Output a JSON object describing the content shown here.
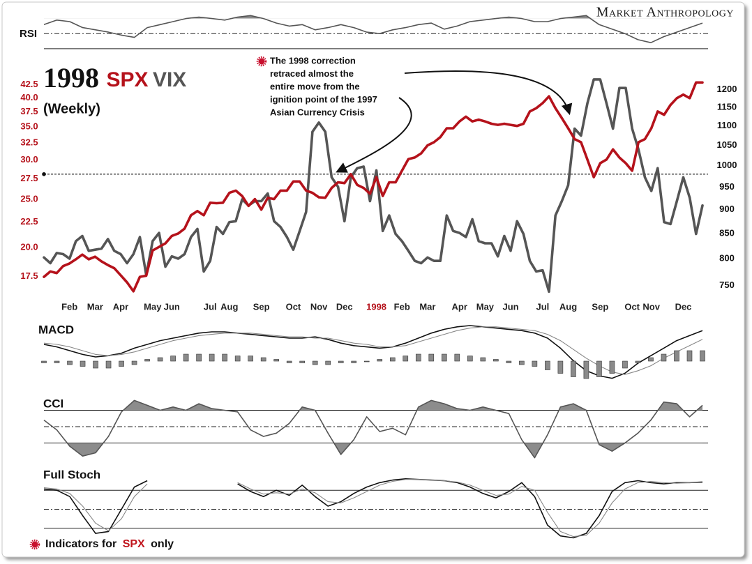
{
  "brand": "Market Anthropology",
  "footnote": [
    "Indicators for",
    "SPX",
    "only"
  ],
  "chart_data": [
    {
      "type": "line",
      "title": "1998",
      "subtitle": "(Weekly)",
      "log": true,
      "annotation": [
        "The 1998 correction",
        "retraced almost the",
        "entire move from the",
        "ignition point of the 1997",
        "Asian Currency Crisis"
      ],
      "categories": [
        null,
        null,
        null,
        null,
        "Feb",
        null,
        null,
        null,
        "Mar",
        null,
        null,
        null,
        "Apr",
        null,
        null,
        null,
        null,
        "May",
        null,
        null,
        "Jun",
        null,
        null,
        null,
        null,
        null,
        "Jul",
        null,
        null,
        "Aug",
        null,
        null,
        null,
        null,
        "Sep",
        null,
        null,
        null,
        null,
        "Oct",
        null,
        null,
        null,
        "Nov",
        null,
        null,
        null,
        "Dec",
        null,
        null,
        null,
        null,
        "1998",
        null,
        null,
        null,
        "Feb",
        null,
        null,
        null,
        "Mar",
        null,
        null,
        null,
        null,
        "Apr",
        null,
        null,
        null,
        "May",
        null,
        null,
        null,
        "Jun",
        null,
        null,
        null,
        null,
        "Jul",
        null,
        null,
        null,
        "Aug",
        null,
        null,
        null,
        null,
        "Sep",
        null,
        null,
        null,
        null,
        "Oct",
        null,
        null,
        "Nov",
        null,
        null,
        null,
        null,
        "Dec",
        null,
        null,
        null
      ],
      "year_label_color": "#b5121b",
      "ytick_color": "#b5121b",
      "ylim": [
        15.7,
        45.6
      ],
      "yticks": [
        17.5,
        {
          "value": 20,
          "label": "20.0"
        },
        22.5,
        {
          "value": 25,
          "label": "25.0"
        },
        27.5,
        {
          "value": 30,
          "label": "30.0"
        },
        32.5,
        {
          "value": 35,
          "label": "35.0"
        },
        37.5,
        {
          "value": 40,
          "label": "40.0"
        },
        42.5
      ],
      "y2lim": [
        725,
        1259
      ],
      "y2ticks": [
        750,
        800,
        850,
        900,
        950,
        1000,
        1050,
        1100,
        1150,
        1200
      ],
      "reference_line": {
        "axis": "y2",
        "value": 980
      },
      "series": [
        {
          "name": "VIX",
          "color": "#555555",
          "axis": "y",
          "values": [
            19.1,
            18.6,
            19.5,
            19.4,
            19.0,
            20.6,
            21.1,
            19.7,
            19.8,
            19.9,
            20.8,
            19.7,
            19.4,
            18.6,
            19.4,
            21.0,
            17.6,
            20.6,
            21.4,
            18.3,
            19.2,
            19.0,
            19.4,
            21.0,
            21.8,
            17.9,
            18.8,
            22.0,
            21.3,
            22.5,
            22.6,
            25.0,
            24.3,
            24.8,
            24.8,
            25.7,
            22.6,
            22.0,
            21.0,
            19.8,
            21.6,
            23.6,
            34.2,
            35.7,
            34.2,
            27.7,
            26.5,
            22.6,
            27.7,
            28.9,
            29.1,
            24.8,
            28.6,
            21.6,
            23.2,
            21.3,
            20.6,
            19.7,
            18.8,
            18.6,
            19.1,
            18.8,
            18.8,
            23.2,
            21.6,
            21.4,
            21.0,
            22.8,
            20.6,
            20.4,
            20.4,
            19.2,
            21.1,
            19.7,
            22.6,
            21.3,
            18.8,
            17.9,
            18.0,
            16.3,
            23.2,
            24.8,
            26.7,
            34.7,
            33.6,
            39.0,
            43.6,
            43.6,
            39.0,
            34.7,
            41.9,
            41.9,
            34.7,
            31.5,
            27.7,
            26.0,
            28.9,
            22.5,
            22.3,
            24.8,
            27.7,
            25.2,
            21.3,
            24.3
          ]
        },
        {
          "name": "SPX",
          "color": "#b5121b",
          "axis": "y2",
          "values": [
            766,
            776,
            773,
            786,
            791,
            799,
            808,
            799,
            804,
            795,
            788,
            782,
            769,
            756,
            740,
            766,
            768,
            816,
            823,
            830,
            845,
            850,
            860,
            888,
            897,
            888,
            915,
            914,
            915,
            937,
            942,
            930,
            908,
            923,
            900,
            926,
            923,
            942,
            942,
            963,
            963,
            942,
            937,
            927,
            926,
            948,
            961,
            959,
            980,
            955,
            948,
            935,
            973,
            930,
            961,
            961,
            988,
            1016,
            1020,
            1030,
            1050,
            1058,
            1071,
            1094,
            1094,
            1112,
            1125,
            1112,
            1117,
            1112,
            1106,
            1103,
            1106,
            1103,
            1100,
            1106,
            1139,
            1148,
            1162,
            1181,
            1148,
            1121,
            1094,
            1066,
            1058,
            1015,
            973,
            1006,
            1015,
            1040,
            1020,
            1006,
            988,
            1058,
            1066,
            1094,
            1139,
            1130,
            1157,
            1176,
            1186,
            1176,
            1221,
            1221
          ]
        }
      ]
    },
    {
      "type": "line",
      "label": "RSI",
      "ylim": [
        28,
        78
      ],
      "levels": [
        {
          "value": 50,
          "style": "dashed"
        },
        {
          "value": 30,
          "style": "solid"
        }
      ],
      "fill_above": 70,
      "series": [
        {
          "color": "#555555",
          "values": [
            62,
            68,
            66,
            58,
            55,
            52,
            48,
            45,
            58,
            62,
            66,
            70,
            72,
            70,
            68,
            72,
            74,
            70,
            64,
            60,
            62,
            55,
            58,
            62,
            58,
            52,
            50,
            55,
            58,
            62,
            64,
            56,
            60,
            66,
            68,
            70,
            72,
            70,
            66,
            66,
            70,
            72,
            74,
            62,
            56,
            50,
            42,
            38,
            46,
            52,
            58,
            64
          ]
        }
      ]
    },
    {
      "type": "line",
      "label": "MACD",
      "ylim": [
        -25,
        25
      ],
      "y2lim": [
        -12,
        24
      ],
      "series": [
        {
          "color": "#111111",
          "values": [
            5,
            3,
            0,
            -3,
            -5,
            -4,
            -2,
            2,
            5,
            8,
            10,
            12,
            14,
            15,
            15,
            14,
            13,
            12,
            11,
            10,
            10,
            11,
            9,
            6,
            4,
            3,
            2,
            3,
            6,
            10,
            14,
            17,
            19,
            20,
            19,
            18,
            17,
            16,
            14,
            10,
            2,
            -8,
            -16,
            -20,
            -22,
            -18,
            -10,
            -4,
            2,
            8,
            12,
            16
          ]
        },
        {
          "color": "#888888",
          "values": [
            6,
            5,
            3,
            0,
            -3,
            -4,
            -3,
            -1,
            2,
            5,
            8,
            10,
            12,
            13,
            14,
            14,
            14,
            13,
            12,
            11,
            11,
            10,
            10,
            8,
            6,
            5,
            3,
            3,
            4,
            7,
            10,
            13,
            16,
            18,
            19,
            19,
            18,
            17,
            16,
            13,
            8,
            1,
            -6,
            -12,
            -17,
            -19,
            -16,
            -12,
            -6,
            -1,
            4,
            9
          ]
        },
        {
          "type": "bar",
          "axis": "y2",
          "color": "#8a8a8a",
          "values": [
            -1,
            -1,
            -2,
            -3,
            -4,
            -4,
            -3,
            -2,
            1,
            2,
            3,
            4,
            4,
            4,
            4,
            3,
            3,
            2,
            1,
            -1,
            -1,
            -2,
            -2,
            -1,
            -1,
            0,
            1,
            2,
            3,
            4,
            4,
            4,
            4,
            3,
            2,
            1,
            -1,
            -2,
            -3,
            -5,
            -7,
            -9,
            -10,
            -9,
            -7,
            -4,
            -1,
            2,
            4,
            6,
            6,
            6
          ]
        }
      ]
    },
    {
      "type": "line",
      "label": "CCI",
      "ylim": [
        -260,
        200
      ],
      "levels": [
        {
          "value": 100,
          "style": "solid"
        },
        {
          "value": 0,
          "style": "dashed"
        },
        {
          "value": -100,
          "style": "solid"
        }
      ],
      "fill_above": 100,
      "fill_below": -100,
      "series": [
        {
          "color": "#555555",
          "values": [
            40,
            -20,
            -120,
            -180,
            -160,
            -60,
            90,
            160,
            130,
            100,
            120,
            100,
            140,
            110,
            100,
            90,
            -20,
            -60,
            -40,
            20,
            120,
            100,
            -40,
            -170,
            -80,
            60,
            -30,
            -10,
            -50,
            120,
            160,
            140,
            110,
            100,
            120,
            100,
            80,
            -80,
            -190,
            -50,
            120,
            140,
            100,
            -110,
            -150,
            -100,
            -40,
            40,
            150,
            140,
            60,
            130
          ]
        }
      ]
    },
    {
      "type": "line",
      "label": "Full Stoch",
      "ylim": [
        0,
        100
      ],
      "levels": [
        {
          "value": 80,
          "style": "solid"
        },
        {
          "value": 50,
          "style": "dashed"
        },
        {
          "value": 20,
          "style": "solid"
        }
      ],
      "series": [
        {
          "color": "#111111",
          "values": [
            82,
            80,
            70,
            40,
            12,
            15,
            50,
            85,
            95,
            null,
            null,
            null,
            null,
            null,
            null,
            90,
            78,
            70,
            80,
            72,
            88,
            70,
            55,
            62,
            75,
            85,
            92,
            96,
            98,
            97,
            96,
            95,
            92,
            85,
            75,
            68,
            78,
            92,
            70,
            25,
            8,
            5,
            12,
            40,
            78,
            92,
            95,
            92,
            90,
            92,
            92,
            93
          ]
        },
        {
          "color": "#888888",
          "values": [
            84,
            82,
            75,
            55,
            28,
            16,
            35,
            70,
            90,
            null,
            null,
            null,
            null,
            null,
            null,
            92,
            82,
            74,
            76,
            74,
            82,
            76,
            62,
            60,
            68,
            78,
            88,
            94,
            97,
            97,
            96,
            95,
            93,
            88,
            80,
            72,
            74,
            86,
            80,
            45,
            15,
            7,
            9,
            28,
            60,
            82,
            92,
            94,
            92,
            91,
            92,
            92
          ]
        }
      ]
    }
  ]
}
